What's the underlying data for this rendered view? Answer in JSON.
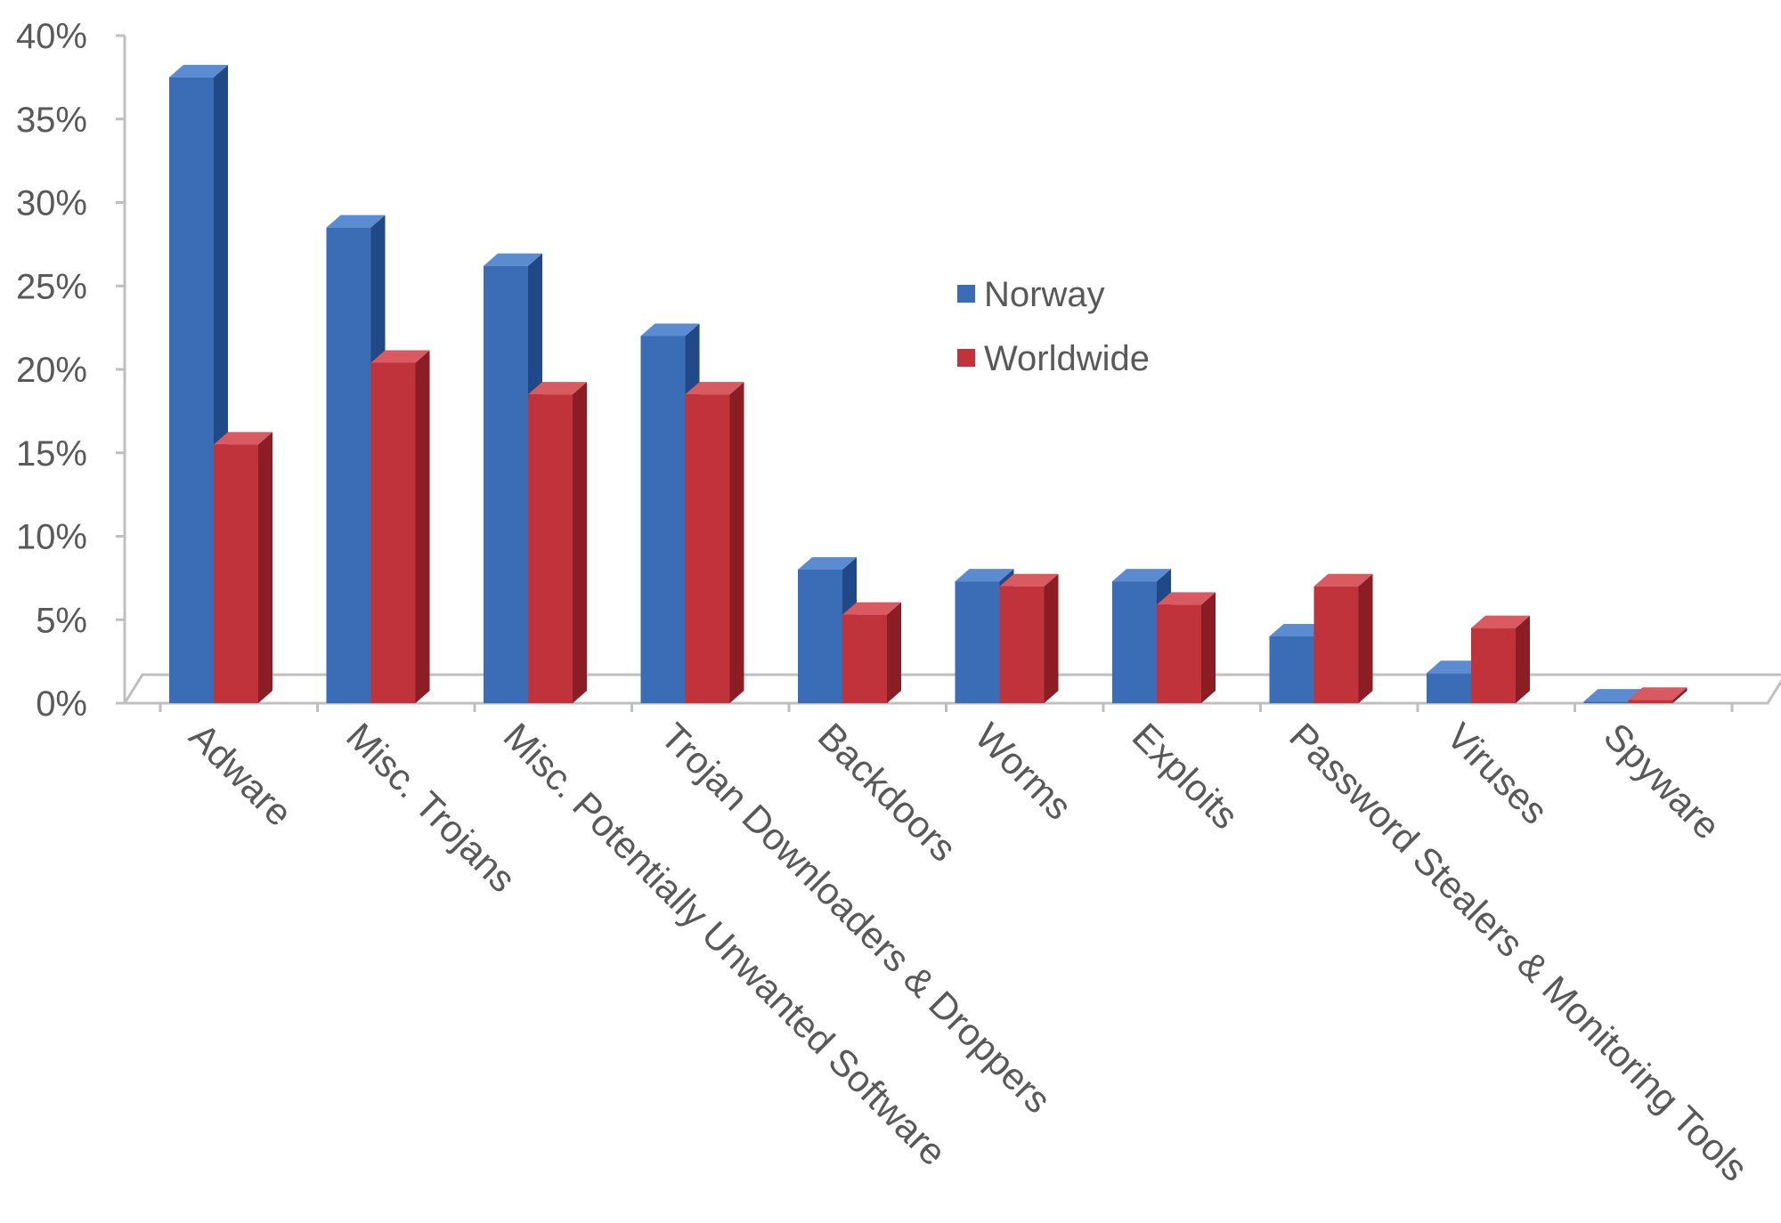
{
  "chart_data": {
    "type": "bar",
    "style": "3d-clustered-column",
    "categories": [
      "Adware",
      "Misc. Trojans",
      "Misc. Potentially Unwanted Software",
      "Trojan Downloaders & Droppers",
      "Backdoors",
      "Worms",
      "Exploits",
      "Password Stealers & Monitoring Tools",
      "Viruses",
      "Spyware"
    ],
    "series": [
      {
        "name": "Norway",
        "color": "#3A6DB5",
        "side_color": "#1F4A87",
        "top_color": "#5B8BD0",
        "values": [
          37.5,
          28.5,
          26.2,
          22.0,
          8.0,
          7.3,
          7.3,
          4.0,
          1.8,
          0.1
        ]
      },
      {
        "name": "Worldwide",
        "color": "#C0333A",
        "side_color": "#8A1E24",
        "top_color": "#D95A60",
        "values": [
          15.5,
          20.4,
          18.5,
          18.5,
          5.3,
          7.0,
          5.9,
          7.0,
          4.5,
          0.2
        ]
      }
    ],
    "yticks": [
      "0%",
      "5%",
      "10%",
      "15%",
      "20%",
      "25%",
      "30%",
      "35%",
      "40%"
    ],
    "ylim": [
      0,
      40
    ],
    "title": "",
    "xlabel": "",
    "ylabel": "",
    "grid": false,
    "legend_position": "center-right"
  }
}
